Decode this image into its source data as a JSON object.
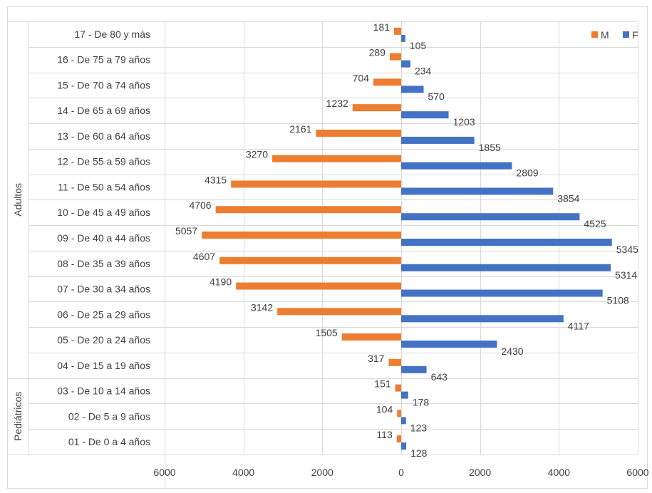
{
  "chart_data": {
    "type": "bar",
    "orientation": "horizontal",
    "layout": "population-pyramid",
    "title": "",
    "xlabel": "",
    "ylabel": "",
    "xlim": [
      -6000,
      6000
    ],
    "x_tick_values": [
      -6000,
      -4000,
      -2000,
      0,
      2000,
      4000,
      6000
    ],
    "x_tick_labels": [
      "6000",
      "4000",
      "2000",
      "0",
      "2000",
      "4000",
      "6000"
    ],
    "grid": true,
    "legend_position": "top-right",
    "groups": [
      {
        "label": "Adultos",
        "categories": 14
      },
      {
        "label": "Pediátricos",
        "categories": 3
      }
    ],
    "categories": [
      "17 - De 80 y más",
      "16 - De 75 a 79 años",
      "15 - De 70 a 74 años",
      "14 - De 65 a 69 años",
      "13 - De 60 a 64 años",
      "12 - De 55 a 59 años",
      "11 - De 50 a 54 años",
      "10 - De 45 a 49 años",
      "09 - De 40 a 44 años",
      "08 - De 35 a 39 años",
      "07 - De 30 a 34 años",
      "06 - De 25 a 29 años",
      "05 - De 20 a 24 años",
      "04 - De 15 a 19 años",
      "03 - De 10 a 14 años",
      "02 - De 5 a 9 años",
      "01 - De 0 a 4 años"
    ],
    "series": [
      {
        "name": "M",
        "color": "#ED7D31",
        "direction": "left",
        "values": [
          181,
          289,
          704,
          1232,
          2161,
          3270,
          4315,
          4706,
          5057,
          4607,
          4190,
          3142,
          1505,
          317,
          151,
          104,
          113
        ]
      },
      {
        "name": "F",
        "color": "#4472C4",
        "direction": "right",
        "values": [
          105,
          234,
          570,
          1203,
          1855,
          2809,
          3854,
          4525,
          5345,
          5314,
          5108,
          4117,
          2430,
          643,
          178,
          123,
          128
        ]
      }
    ]
  }
}
